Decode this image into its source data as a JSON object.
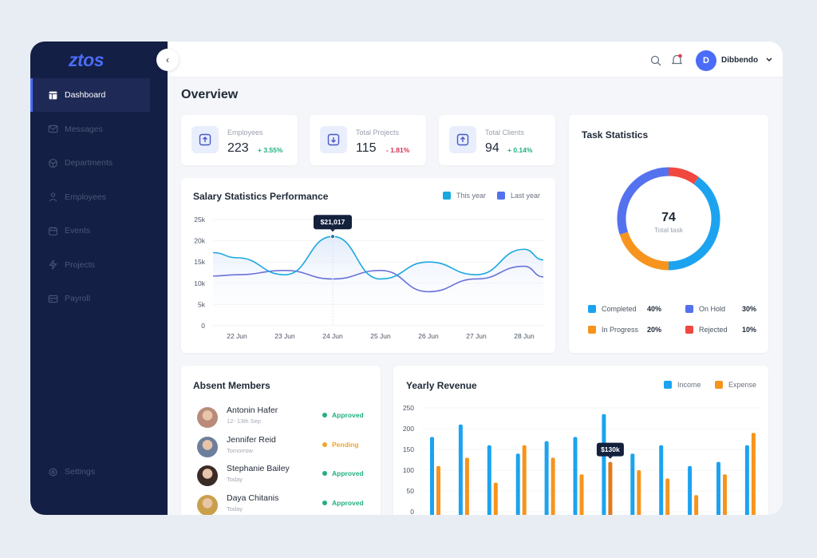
{
  "app": {
    "logo": "ztos"
  },
  "sidebar": {
    "items": [
      {
        "label": "Dashboard",
        "icon": "dashboard-icon",
        "active": true
      },
      {
        "label": "Messages",
        "icon": "mail-icon"
      },
      {
        "label": "Departments",
        "icon": "cube-icon"
      },
      {
        "label": "Employees",
        "icon": "user-icon"
      },
      {
        "label": "Events",
        "icon": "calendar-icon"
      },
      {
        "label": "Projects",
        "icon": "bolt-icon"
      },
      {
        "label": "Payroll",
        "icon": "card-icon"
      }
    ],
    "settings": "Settings"
  },
  "header": {
    "user_initial": "D",
    "user_name": "Dibbendo",
    "notification_dot": true
  },
  "page_title": "Overview",
  "stats": [
    {
      "label": "Employees",
      "value": "223",
      "change": "+ 3.55%",
      "trend": "up",
      "color": "#22b07d"
    },
    {
      "label": "Total Projects",
      "value": "115",
      "change": "- 1.81%",
      "trend": "down",
      "color": "#d9304f"
    },
    {
      "label": "Total Clients",
      "value": "94",
      "change": "+ 0.14%",
      "trend": "up",
      "color": "#22b07d"
    }
  ],
  "chart_data": [
    {
      "type": "line",
      "title": "Salary Statistics Performance",
      "x": [
        "22 Jun",
        "23 Jun",
        "24 Jun",
        "25 Jun",
        "26 Jun",
        "27 Jun",
        "28 Jun"
      ],
      "ylim": [
        0,
        25000
      ],
      "yticks": [
        "0",
        "5k",
        "10k",
        "15k",
        "20k",
        "25k"
      ],
      "legend_placement": "top-right",
      "series": [
        {
          "name": "This year",
          "color": "#1aa8e0",
          "values": [
            16000,
            12000,
            21017,
            11000,
            15000,
            12000,
            18000
          ]
        },
        {
          "name": "Last year",
          "color": "#6a72d8",
          "values": [
            12000,
            13000,
            11000,
            13000,
            8000,
            11000,
            14000
          ]
        }
      ],
      "tooltip": "$21,017"
    },
    {
      "type": "pie",
      "title": "Task Statistics",
      "center_value": "74",
      "center_label": "Total task",
      "slices": [
        {
          "name": "Completed",
          "value": 40,
          "label": "40%",
          "color": "#1ca3f0"
        },
        {
          "name": "On Hold",
          "value": 30,
          "label": "30%",
          "color": "#5472ee"
        },
        {
          "name": "In Progress",
          "value": 20,
          "label": "20%",
          "color": "#f7941d"
        },
        {
          "name": "Rejected",
          "value": 10,
          "label": "10%",
          "color": "#f0483e"
        }
      ]
    },
    {
      "type": "bar",
      "title": "Yearly Revenue",
      "ylim": [
        0,
        250
      ],
      "yticks": [
        "0",
        "50",
        "100",
        "150",
        "200",
        "250"
      ],
      "legend_placement": "top-right",
      "series": [
        {
          "name": "Income",
          "color": "#1ca3f0",
          "values": [
            180,
            210,
            160,
            140,
            170,
            180,
            235,
            140,
            160,
            110,
            120,
            160
          ]
        },
        {
          "name": "Expense",
          "color": "#f7941d",
          "values": [
            110,
            130,
            70,
            160,
            130,
            90,
            120,
            100,
            80,
            40,
            90,
            190
          ]
        }
      ],
      "tooltip": "$130k"
    }
  ],
  "absent": {
    "title": "Absent Members",
    "members": [
      {
        "name": "Antonin Hafer",
        "when": "12- 13th Sep",
        "status": "Approved",
        "color": "#22b07d"
      },
      {
        "name": "Jennifer Reid",
        "when": "Tomorrow",
        "status": "Pending",
        "color": "#f0a52b"
      },
      {
        "name": "Stephanie Bailey",
        "when": "Today",
        "status": "Approved",
        "color": "#22b07d"
      },
      {
        "name": "Daya Chitanis",
        "when": "Today",
        "status": "Approved",
        "color": "#22b07d"
      }
    ]
  }
}
